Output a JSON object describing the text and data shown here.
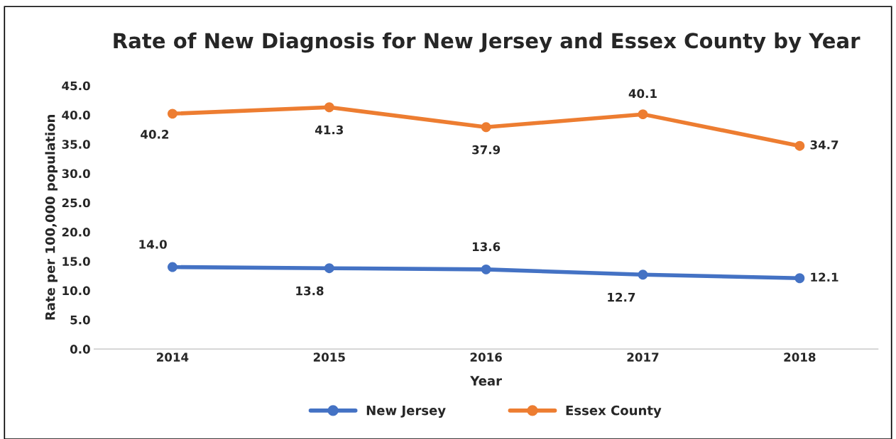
{
  "chart_data": {
    "type": "line",
    "title": "Rate of New Diagnosis for New Jersey and Essex County by Year",
    "xlabel": "Year",
    "ylabel": "Rate per 100,000 population",
    "categories": [
      "2014",
      "2015",
      "2016",
      "2017",
      "2018"
    ],
    "series": [
      {
        "name": "New Jersey",
        "color": "#4472c4",
        "values": [
          14.0,
          13.8,
          13.6,
          12.7,
          12.1
        ],
        "value_labels": [
          "14.0",
          "13.8",
          "13.6",
          "12.7",
          "12.1"
        ]
      },
      {
        "name": "Essex County",
        "color": "#ed7d31",
        "values": [
          40.2,
          41.3,
          37.9,
          40.1,
          34.7
        ],
        "value_labels": [
          "40.2",
          "41.3",
          "37.9",
          "40.1",
          "34.7"
        ]
      }
    ],
    "ylim": [
      0,
      45
    ],
    "yticks": [
      {
        "value": 0,
        "label": "0.0"
      },
      {
        "value": 5,
        "label": "5.0"
      },
      {
        "value": 10,
        "label": "10.0"
      },
      {
        "value": 15,
        "label": "15.0"
      },
      {
        "value": 20,
        "label": "20.0"
      },
      {
        "value": 25,
        "label": "25.0"
      },
      {
        "value": 30,
        "label": "30.0"
      },
      {
        "value": 35,
        "label": "35.0"
      },
      {
        "value": 40,
        "label": "40.0"
      },
      {
        "value": 45,
        "label": "45.0"
      }
    ],
    "marker": "circle",
    "line_style": "solid",
    "grid": false,
    "legend": "bottom"
  }
}
